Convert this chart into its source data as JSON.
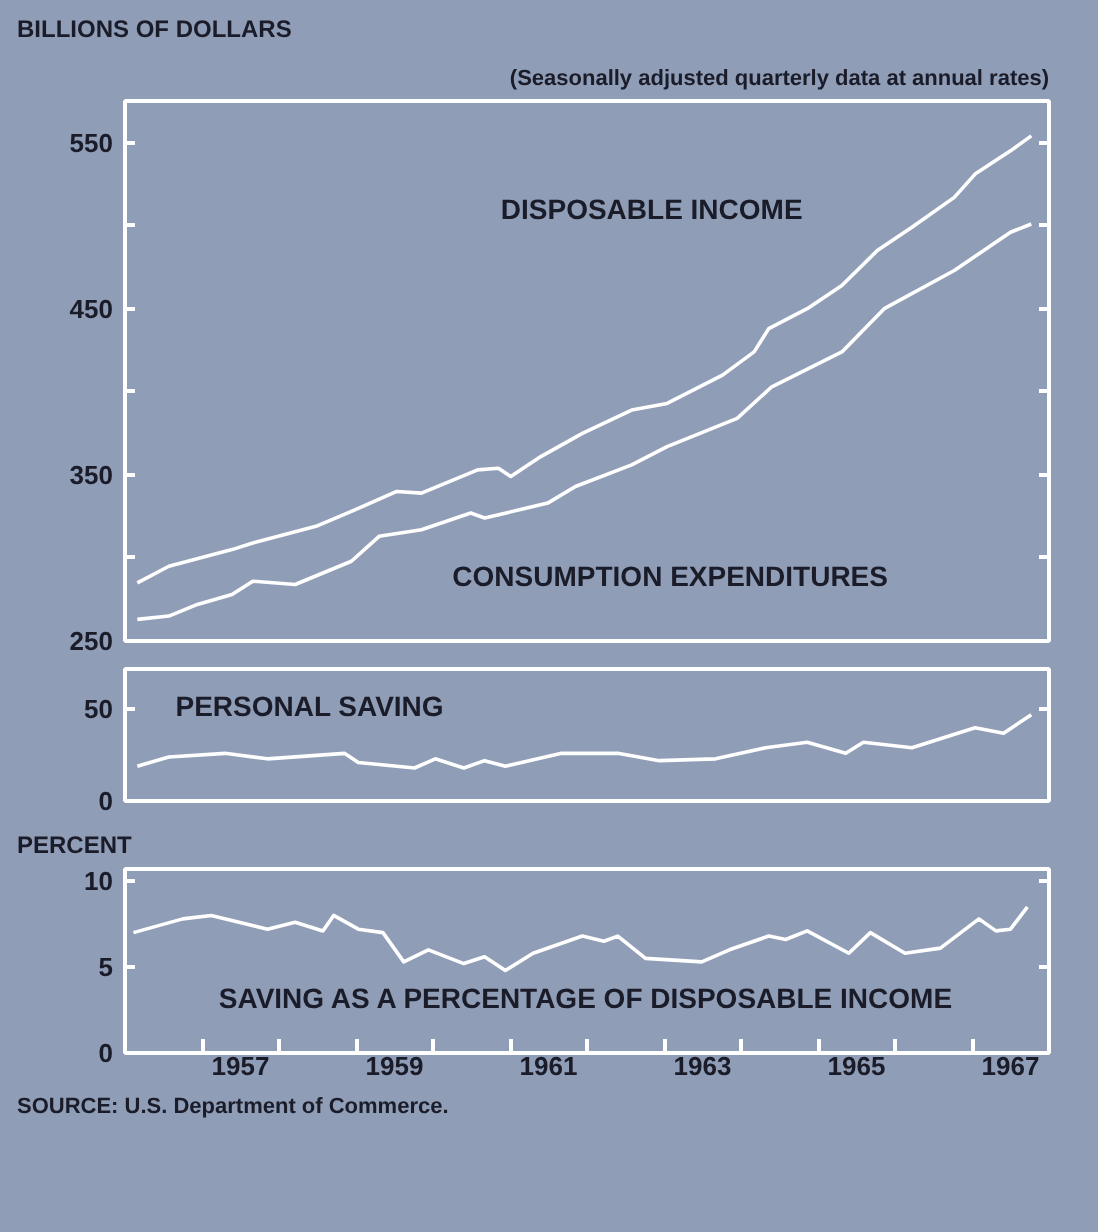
{
  "chart_data": [
    {
      "type": "line",
      "ylabel": "BILLIONS OF DOLLARS",
      "subtitle": "(Seasonally adjusted quarterly data at annual rates)",
      "xlim": [
        1956,
        1968
      ],
      "ylim": [
        250,
        575
      ],
      "yticks": [
        250,
        {
          "value": 300,
          "label": null
        },
        350,
        {
          "value": 400,
          "label": null
        },
        450,
        {
          "value": 500,
          "label": null
        },
        550
      ],
      "tick_labels": "y",
      "series": [
        {
          "name": "DISPOSABLE INCOME",
          "color": "#ffffff",
          "x": [
            1956.16,
            1956.57,
            1957.39,
            1957.66,
            1958.48,
            1958.94,
            1959.53,
            1959.85,
            1960.58,
            1960.85,
            1961.01,
            1961.4,
            1961.94,
            1962.58,
            1963.04,
            1963.76,
            1964.17,
            1964.36,
            1964.86,
            1965.31,
            1965.77,
            1966.22,
            1966.77,
            1967.04,
            1967.5,
            1967.77
          ],
          "values": [
            285,
            295,
            305,
            309,
            319,
            328,
            340,
            339,
            353,
            354,
            349,
            361,
            375,
            389,
            393,
            410,
            424,
            438,
            450,
            464,
            485,
            499,
            517,
            531,
            545,
            554
          ]
        },
        {
          "name": "CONSUMPTION EXPENDITURES",
          "color": "#ffffff",
          "x": [
            1956.16,
            1956.57,
            1956.94,
            1957.39,
            1957.66,
            1958.21,
            1958.94,
            1959.3,
            1959.85,
            1960.49,
            1960.67,
            1961.49,
            1961.85,
            1962.58,
            1963.04,
            1963.95,
            1964.4,
            1965.31,
            1965.86,
            1966.77,
            1967.5,
            1967.77
          ],
          "values": [
            263,
            265,
            272,
            278,
            286,
            284,
            298,
            313,
            317,
            327,
            324,
            333,
            343,
            356,
            367,
            384,
            403,
            424,
            450,
            473,
            496,
            501
          ]
        }
      ]
    },
    {
      "type": "line",
      "xlim": [
        1956,
        1968
      ],
      "ylim": [
        0,
        72
      ],
      "yticks": [
        0,
        50
      ],
      "tick_labels": "y",
      "series": [
        {
          "name": "PERSONAL SAVING",
          "color": "#ffffff",
          "x": [
            1956.16,
            1956.57,
            1957.3,
            1957.85,
            1958.85,
            1959.03,
            1959.76,
            1960.03,
            1960.4,
            1960.67,
            1960.94,
            1961.67,
            1962.4,
            1962.94,
            1963.67,
            1964.32,
            1964.86,
            1965.36,
            1965.59,
            1966.22,
            1967.04,
            1967.41,
            1967.77
          ],
          "values": [
            19,
            24,
            26,
            23,
            26,
            21,
            18,
            23,
            18,
            22,
            19,
            26,
            26,
            22,
            23,
            29,
            32,
            26,
            32,
            29,
            40,
            37,
            47
          ]
        }
      ]
    },
    {
      "type": "line",
      "ylabel": "PERCENT",
      "xlim": [
        1956,
        1968
      ],
      "ylim": [
        0,
        10.7
      ],
      "yticks": [
        0,
        5,
        10
      ],
      "xticks": [
        {
          "value": 1957,
          "label": null
        },
        {
          "value": 1957.5,
          "label": "1957"
        },
        {
          "value": 1958,
          "label": null
        },
        {
          "value": 1959,
          "label": null
        },
        {
          "value": 1959.5,
          "label": "1959"
        },
        {
          "value": 1960,
          "label": null
        },
        {
          "value": 1961,
          "label": null
        },
        {
          "value": 1961.5,
          "label": "1961"
        },
        {
          "value": 1962,
          "label": null
        },
        {
          "value": 1963,
          "label": null
        },
        {
          "value": 1963.5,
          "label": "1963"
        },
        {
          "value": 1964,
          "label": null
        },
        {
          "value": 1965,
          "label": null
        },
        {
          "value": 1965.5,
          "label": "1965"
        },
        {
          "value": 1966,
          "label": null
        },
        {
          "value": 1967,
          "label": null
        },
        {
          "value": 1967.5,
          "label": "1967"
        }
      ],
      "annotations": [
        "SOURCE: U.S. Department of Commerce."
      ],
      "series": [
        {
          "name": "SAVING AS A PERCENTAGE OF DISPOSABLE INCOME",
          "color": "#ffffff",
          "x": [
            1956.11,
            1956.75,
            1957.12,
            1957.85,
            1958.21,
            1958.57,
            1958.71,
            1959.03,
            1959.35,
            1959.62,
            1959.94,
            1960.4,
            1960.67,
            1960.94,
            1961.3,
            1961.94,
            1962.22,
            1962.4,
            1962.76,
            1963.49,
            1963.85,
            1964.36,
            1964.58,
            1964.86,
            1965.4,
            1965.68,
            1966.13,
            1966.59,
            1967.09,
            1967.31,
            1967.5,
            1967.72
          ],
          "values": [
            7.0,
            7.8,
            8.0,
            7.2,
            7.6,
            7.1,
            8.0,
            7.2,
            7.0,
            5.3,
            6.0,
            5.2,
            5.6,
            4.8,
            5.8,
            6.8,
            6.5,
            6.8,
            5.5,
            5.3,
            6.0,
            6.8,
            6.6,
            7.1,
            5.8,
            7.0,
            5.8,
            6.1,
            7.8,
            7.1,
            7.2,
            8.5
          ]
        }
      ]
    }
  ]
}
